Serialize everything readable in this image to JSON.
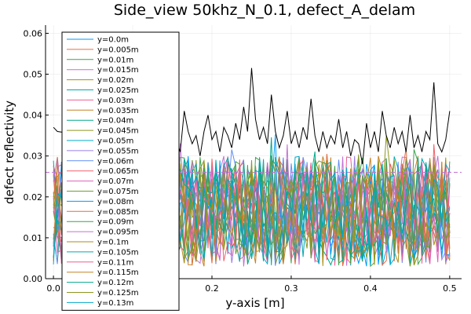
{
  "chart_data": {
    "type": "line",
    "title": "Side_view 50khz_N_0.1, defect_A_delam",
    "xlabel": "y-axis [m]",
    "ylabel": "defect reflectivity",
    "xlim": [
      -0.01,
      0.515
    ],
    "ylim": [
      0.0,
      0.062
    ],
    "x_ticks": [
      {
        "value": 0.0,
        "label": "0.0"
      },
      {
        "value": 0.1,
        "label": "0.1"
      },
      {
        "value": 0.2,
        "label": "0.2"
      },
      {
        "value": 0.3,
        "label": "0.3"
      },
      {
        "value": 0.4,
        "label": "0.4"
      },
      {
        "value": 0.5,
        "label": "0.5"
      }
    ],
    "y_ticks": [
      {
        "value": 0.0,
        "label": "0.00"
      },
      {
        "value": 0.01,
        "label": "0.01"
      },
      {
        "value": 0.02,
        "label": "0.02"
      },
      {
        "value": 0.03,
        "label": "0.03"
      },
      {
        "value": 0.04,
        "label": "0.04"
      },
      {
        "value": 0.05,
        "label": "0.05"
      },
      {
        "value": 0.06,
        "label": "0.06"
      }
    ],
    "grid": true,
    "legend_position": "top-left",
    "threshold": {
      "value": 0.026,
      "color": "#c271d2",
      "style": "dashed"
    },
    "envelope": {
      "color": "#000000",
      "x": [
        0.0,
        0.005,
        0.15,
        0.155,
        0.16,
        0.165,
        0.17,
        0.175,
        0.18,
        0.185,
        0.19,
        0.195,
        0.2,
        0.205,
        0.21,
        0.215,
        0.22,
        0.225,
        0.23,
        0.235,
        0.24,
        0.245,
        0.25,
        0.255,
        0.26,
        0.265,
        0.27,
        0.275,
        0.28,
        0.285,
        0.29,
        0.295,
        0.3,
        0.305,
        0.31,
        0.315,
        0.32,
        0.325,
        0.33,
        0.335,
        0.34,
        0.345,
        0.35,
        0.355,
        0.36,
        0.365,
        0.37,
        0.375,
        0.38,
        0.385,
        0.39,
        0.395,
        0.4,
        0.405,
        0.41,
        0.415,
        0.42,
        0.425,
        0.43,
        0.435,
        0.44,
        0.445,
        0.45,
        0.455,
        0.46,
        0.465,
        0.47,
        0.475,
        0.48,
        0.485,
        0.49,
        0.495,
        0.5
      ],
      "y": [
        0.037,
        0.036,
        0.032,
        0.034,
        0.031,
        0.041,
        0.036,
        0.033,
        0.035,
        0.03,
        0.036,
        0.04,
        0.034,
        0.036,
        0.031,
        0.037,
        0.035,
        0.032,
        0.038,
        0.034,
        0.042,
        0.036,
        0.0515,
        0.039,
        0.034,
        0.037,
        0.033,
        0.045,
        0.036,
        0.032,
        0.035,
        0.041,
        0.033,
        0.036,
        0.032,
        0.037,
        0.034,
        0.044,
        0.035,
        0.031,
        0.036,
        0.032,
        0.035,
        0.033,
        0.039,
        0.032,
        0.036,
        0.03,
        0.034,
        0.033,
        0.028,
        0.038,
        0.032,
        0.036,
        0.031,
        0.041,
        0.035,
        0.032,
        0.037,
        0.033,
        0.036,
        0.031,
        0.04,
        0.032,
        0.035,
        0.031,
        0.036,
        0.034,
        0.048,
        0.033,
        0.031,
        0.034,
        0.041
      ]
    },
    "series": [
      {
        "name": "y=0.0m",
        "color": "#009af9"
      },
      {
        "name": "y=0.005m",
        "color": "#e26f46"
      },
      {
        "name": "y=0.01m",
        "color": "#3da44d"
      },
      {
        "name": "y=0.015m",
        "color": "#c271d2"
      },
      {
        "name": "y=0.02m",
        "color": "#ac8e18"
      },
      {
        "name": "y=0.025m",
        "color": "#00a9ad"
      },
      {
        "name": "y=0.03m",
        "color": "#ed5e93"
      },
      {
        "name": "y=0.035m",
        "color": "#c68225"
      },
      {
        "name": "y=0.04m",
        "color": "#00a98d"
      },
      {
        "name": "y=0.045m",
        "color": "#8e971e"
      },
      {
        "name": "y=0.05m",
        "color": "#00a8cb"
      },
      {
        "name": "y=0.055m",
        "color": "#9b7fe9"
      },
      {
        "name": "y=0.06m",
        "color": "#618df6"
      },
      {
        "name": "y=0.065m",
        "color": "#f16069"
      },
      {
        "name": "y=0.07m",
        "color": "#dc63bb"
      },
      {
        "name": "y=0.075m",
        "color": "#6d9f33"
      },
      {
        "name": "y=0.08m",
        "color": "#009af9"
      },
      {
        "name": "y=0.085m",
        "color": "#e26f46"
      },
      {
        "name": "y=0.09m",
        "color": "#3da44d"
      },
      {
        "name": "y=0.095m",
        "color": "#c271d2"
      },
      {
        "name": "y=0.1m",
        "color": "#ac8e18"
      },
      {
        "name": "y=0.105m",
        "color": "#00a9ad"
      },
      {
        "name": "y=0.11m",
        "color": "#ed5e93"
      },
      {
        "name": "y=0.115m",
        "color": "#c68225"
      },
      {
        "name": "y=0.12m",
        "color": "#00a98d"
      },
      {
        "name": "y=0.125m",
        "color": "#8e971e"
      },
      {
        "name": "y=0.13m",
        "color": "#00a8cb"
      }
    ]
  }
}
